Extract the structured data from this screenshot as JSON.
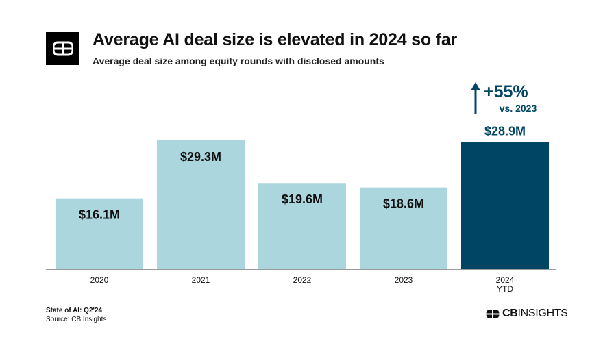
{
  "header": {
    "title": "Average AI deal size is elevated in 2024 so far",
    "subtitle": "Average deal size among equity rounds with disclosed amounts"
  },
  "chart_data": {
    "type": "bar",
    "title": "Average AI deal size is elevated in 2024 so far",
    "subtitle": "Average deal size among equity rounds with disclosed amounts",
    "xlabel": "",
    "ylabel": "",
    "ylim": [
      0,
      35
    ],
    "grid": false,
    "categories": [
      "2020",
      "2021",
      "2022",
      "2023",
      "2024"
    ],
    "category_sublabels": [
      "",
      "",
      "",
      "",
      "YTD"
    ],
    "values": [
      16.1,
      29.3,
      19.6,
      18.6,
      28.9
    ],
    "data_labels": [
      "$16.1M",
      "$29.3M",
      "$19.6M",
      "$18.6M",
      "$28.9M"
    ],
    "bar_colors": [
      "#acd6de",
      "#acd6de",
      "#acd6de",
      "#acd6de",
      "#004563"
    ],
    "label_colors": [
      "#111111",
      "#111111",
      "#111111",
      "#111111",
      "#004563"
    ],
    "annotation": {
      "category": "2024",
      "direction": "up",
      "value_text": "+55%",
      "comparison_text": "vs. 2023",
      "color": "#004563",
      "icon": "up-arrow-icon"
    }
  },
  "footer": {
    "report": "State of AI: Q2'24",
    "source": "Source: CB Insights",
    "brand_bold": "CB",
    "brand_regular": "INSIGHTS"
  }
}
